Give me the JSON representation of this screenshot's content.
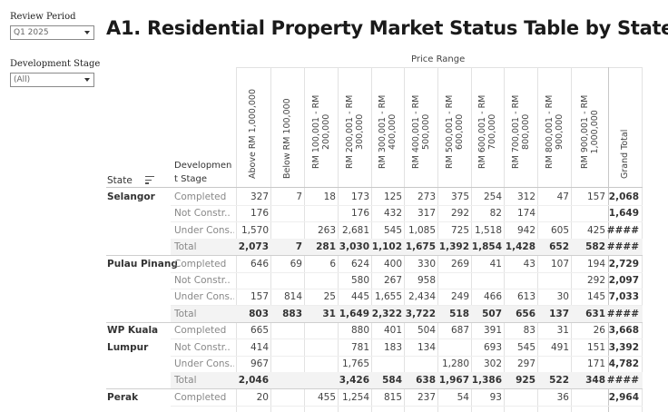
{
  "filters": {
    "review_period": {
      "label": "Review Period",
      "value": "Q1 2025"
    },
    "development_stage": {
      "label": "Development Stage",
      "value": "(All)"
    }
  },
  "title": "A1. Residential Property Market Status Table by State",
  "header": {
    "price_range_label": "Price Range",
    "state_label": "State",
    "stage_label": "Developmen t Stage",
    "columns": [
      "Above RM 1,000,000",
      "Below RM 100,000",
      "RM 100,001 - RM\n200,000",
      "RM 200,001 - RM\n300,000",
      "RM 300,001 - RM\n400,000",
      "RM 400,001 - RM\n500,000",
      "RM 500,001 - RM\n600,000",
      "RM 600,001 - RM\n700,000",
      "RM 700,001 - RM\n800,000",
      "RM 800,001 - RM\n900,000",
      "RM 900,001 - RM\n1,000,000",
      "Grand Total"
    ]
  },
  "rows": [
    {
      "state": "Selangor",
      "stage": "Completed",
      "values": [
        "327",
        "7",
        "18",
        "173",
        "125",
        "273",
        "375",
        "254",
        "312",
        "47",
        "157",
        "2,068"
      ]
    },
    {
      "state": "",
      "stage": "Not Constr..",
      "values": [
        "176",
        "",
        "",
        "176",
        "432",
        "317",
        "292",
        "82",
        "174",
        "",
        "",
        "1,649"
      ]
    },
    {
      "state": "",
      "stage": "Under Cons..",
      "values": [
        "1,570",
        "",
        "263",
        "2,681",
        "545",
        "1,085",
        "725",
        "1,518",
        "942",
        "605",
        "425",
        "####"
      ]
    },
    {
      "state": "",
      "stage": "Total",
      "total": true,
      "values": [
        "2,073",
        "7",
        "281",
        "3,030",
        "1,102",
        "1,675",
        "1,392",
        "1,854",
        "1,428",
        "652",
        "582",
        "####"
      ]
    },
    {
      "state": "Pulau Pinang",
      "stage": "Completed",
      "values": [
        "646",
        "69",
        "6",
        "624",
        "400",
        "330",
        "269",
        "41",
        "43",
        "107",
        "194",
        "2,729"
      ]
    },
    {
      "state": "",
      "stage": "Not Constr..",
      "values": [
        "",
        "",
        "",
        "580",
        "267",
        "958",
        "",
        "",
        "",
        "",
        "292",
        "2,097"
      ]
    },
    {
      "state": "",
      "stage": "Under Cons..",
      "values": [
        "157",
        "814",
        "25",
        "445",
        "1,655",
        "2,434",
        "249",
        "466",
        "613",
        "30",
        "145",
        "7,033"
      ]
    },
    {
      "state": "",
      "stage": "Total",
      "total": true,
      "values": [
        "803",
        "883",
        "31",
        "1,649",
        "2,322",
        "3,722",
        "518",
        "507",
        "656",
        "137",
        "631",
        "####"
      ]
    },
    {
      "state": "WP Kuala",
      "stage": "Completed",
      "values": [
        "665",
        "",
        "",
        "880",
        "401",
        "504",
        "687",
        "391",
        "83",
        "31",
        "26",
        "3,668"
      ]
    },
    {
      "state": "Lumpur",
      "stage": "Not Constr..",
      "values": [
        "414",
        "",
        "",
        "781",
        "183",
        "134",
        "",
        "693",
        "545",
        "491",
        "151",
        "3,392"
      ]
    },
    {
      "state": "",
      "stage": "Under Cons..",
      "values": [
        "967",
        "",
        "",
        "1,765",
        "",
        "",
        "1,280",
        "302",
        "297",
        "",
        "171",
        "4,782"
      ]
    },
    {
      "state": "",
      "stage": "Total",
      "total": true,
      "values": [
        "2,046",
        "",
        "",
        "3,426",
        "584",
        "638",
        "1,967",
        "1,386",
        "925",
        "522",
        "348",
        "####"
      ]
    },
    {
      "state": "Perak",
      "stage": "Completed",
      "values": [
        "20",
        "",
        "455",
        "1,254",
        "815",
        "237",
        "54",
        "93",
        "",
        "36",
        "",
        "2,964"
      ]
    }
  ]
}
